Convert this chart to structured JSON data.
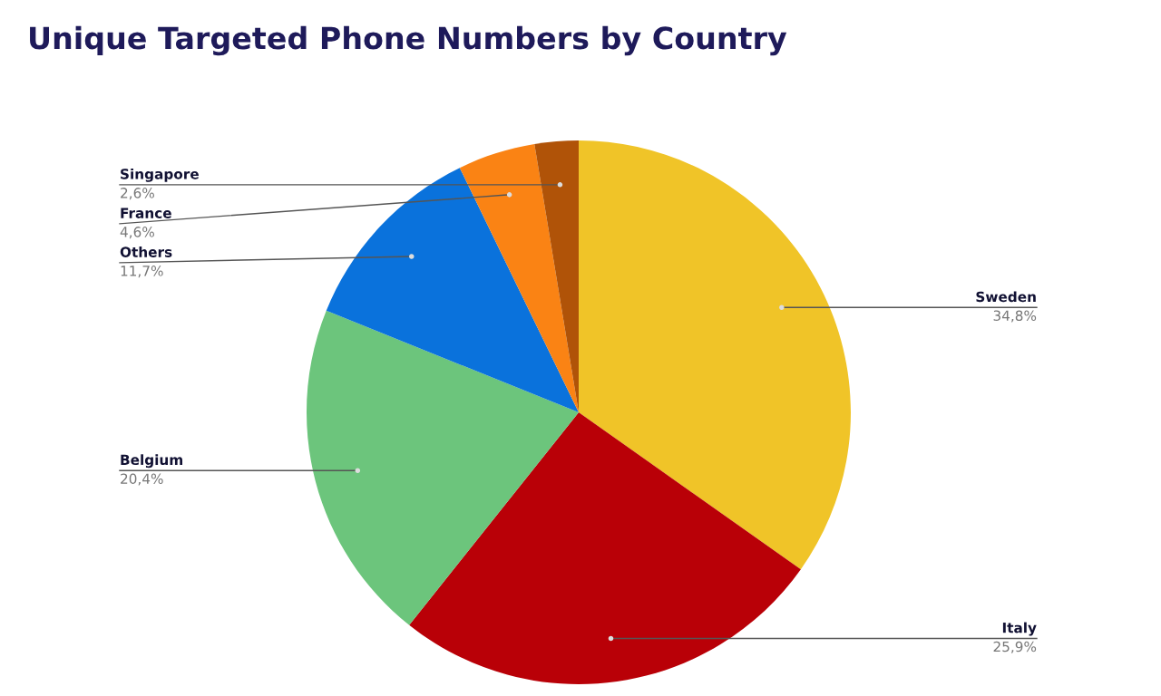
{
  "chart_data": {
    "type": "pie",
    "title": "Unique Targeted Phone Numbers by Country",
    "categories": [
      "Sweden",
      "Italy",
      "Belgium",
      "Others",
      "France",
      "Singapore"
    ],
    "values": [
      34.8,
      25.9,
      20.4,
      11.7,
      4.6,
      2.6
    ],
    "colors": [
      "#f0c428",
      "#b90007",
      "#6cc57c",
      "#0a72dc",
      "#fa8314",
      "#b05308"
    ],
    "value_labels": [
      "34,8%",
      "25,9%",
      "20,4%",
      "11,7%",
      "4,6%",
      "2,6%"
    ]
  }
}
